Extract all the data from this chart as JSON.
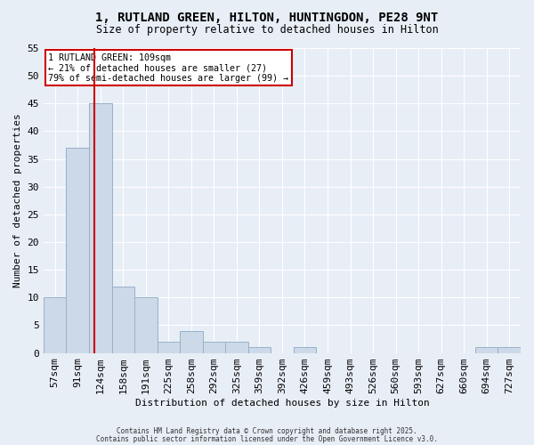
{
  "title_line1": "1, RUTLAND GREEN, HILTON, HUNTINGDON, PE28 9NT",
  "title_line2": "Size of property relative to detached houses in Hilton",
  "xlabel": "Distribution of detached houses by size in Hilton",
  "ylabel": "Number of detached properties",
  "bins": [
    "57sqm",
    "91sqm",
    "124sqm",
    "158sqm",
    "191sqm",
    "225sqm",
    "258sqm",
    "292sqm",
    "325sqm",
    "359sqm",
    "392sqm",
    "426sqm",
    "459sqm",
    "493sqm",
    "526sqm",
    "560sqm",
    "593sqm",
    "627sqm",
    "660sqm",
    "694sqm",
    "727sqm"
  ],
  "values": [
    10,
    37,
    45,
    12,
    10,
    2,
    4,
    2,
    2,
    1,
    0,
    1,
    0,
    0,
    0,
    0,
    0,
    0,
    0,
    1,
    1
  ],
  "bar_color": "#ccd9e8",
  "bar_edge_color": "#9ab0c8",
  "vline_color": "#cc0000",
  "vline_x_index": 1.72,
  "annotation_text": "1 RUTLAND GREEN: 109sqm\n← 21% of detached houses are smaller (27)\n79% of semi-detached houses are larger (99) →",
  "annotation_box_facecolor": "white",
  "annotation_box_edgecolor": "#cc0000",
  "ylim": [
    0,
    55
  ],
  "yticks": [
    0,
    5,
    10,
    15,
    20,
    25,
    30,
    35,
    40,
    45,
    50,
    55
  ],
  "background_color": "#e8eef6",
  "grid_color": "white",
  "footer_line1": "Contains HM Land Registry data © Crown copyright and database right 2025.",
  "footer_line2": "Contains public sector information licensed under the Open Government Licence v3.0."
}
